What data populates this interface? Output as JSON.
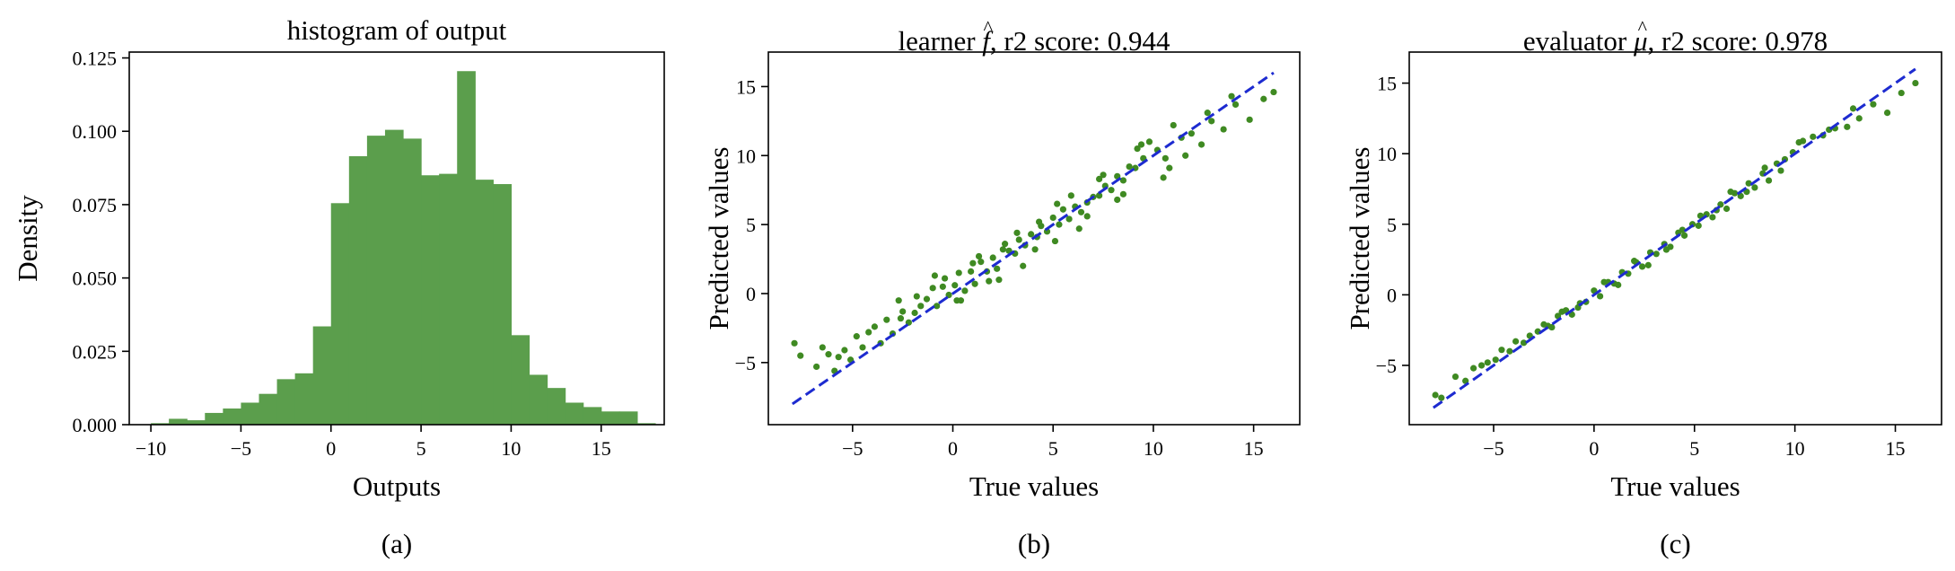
{
  "colors": {
    "bar": "#5b9e4c",
    "point": "#3f8a22",
    "diagonal": "#1d2bd0",
    "axis": "#000000"
  },
  "chart_data": [
    {
      "type": "bar",
      "panel_label": "(a)",
      "title": "histogram of output",
      "xlabel": "Outputs",
      "ylabel": "Density",
      "xlim": [
        -11.2,
        18.5
      ],
      "ylim": [
        0,
        0.127
      ],
      "xticks": [
        -10,
        -5,
        0,
        5,
        10,
        15
      ],
      "xtick_labels": [
        "−10",
        "−5",
        "0",
        "5",
        "10",
        "15"
      ],
      "yticks": [
        0,
        0.025,
        0.05,
        0.075,
        0.1,
        0.125
      ],
      "ytick_labels": [
        "0.000",
        "0.025",
        "0.050",
        "0.075",
        "0.100",
        "0.125"
      ],
      "bin_edges": [
        -10.0,
        -9.0,
        -8.0,
        -7.0,
        -6.0,
        -5.0,
        -4.0,
        -3.0,
        -2.0,
        -1.0,
        0.0,
        1.0,
        2.0,
        3.0,
        4.0,
        5.0,
        6.0,
        7.0,
        8.0,
        9.0,
        10.0,
        11.0,
        12.0,
        13.0,
        14.0,
        15.0,
        16.0,
        17.0
      ],
      "values": [
        0.0005,
        0.002,
        0.0015,
        0.004,
        0.0055,
        0.0075,
        0.0105,
        0.0155,
        0.0175,
        0.0335,
        0.0755,
        0.0915,
        0.0985,
        0.1005,
        0.0975,
        0.085,
        0.0855,
        0.1205,
        0.0835,
        0.082,
        0.0305,
        0.017,
        0.0125,
        0.0075,
        0.006,
        0.0045,
        0.0045,
        0.0005
      ],
      "grid": false,
      "legend": "none"
    },
    {
      "type": "scatter",
      "panel_label": "(b)",
      "title_prefix": "learner ",
      "title_symbol": "f",
      "title_accent": "^",
      "title_suffix": ", r2 score: 0.944",
      "xlabel": "True values",
      "ylabel": "Predicted values",
      "xlim": [
        -9.2,
        17.3
      ],
      "ylim": [
        -9.5,
        17.5
      ],
      "xticks": [
        -5,
        0,
        5,
        10,
        15
      ],
      "xtick_labels": [
        "−5",
        "0",
        "5",
        "10",
        "15"
      ],
      "yticks": [
        -5,
        0,
        5,
        10,
        15
      ],
      "ytick_labels": [
        "−5",
        "0",
        "5",
        "10",
        "15"
      ],
      "diagonal": [
        -8,
        16
      ],
      "x": [
        -7.9,
        -7.6,
        -6.8,
        -6.5,
        -6.2,
        -5.9,
        -5.7,
        -5.4,
        -5.1,
        -4.8,
        -4.5,
        -4.2,
        -3.9,
        -3.6,
        -3.3,
        -3.0,
        -2.7,
        -2.5,
        -2.2,
        -1.9,
        -1.6,
        -1.3,
        -1.0,
        -0.8,
        -0.5,
        -0.2,
        0.1,
        0.3,
        0.6,
        0.9,
        1.1,
        1.4,
        1.7,
        2.0,
        2.2,
        2.5,
        2.8,
        3.1,
        3.3,
        3.6,
        3.9,
        4.2,
        4.4,
        4.7,
        5.0,
        5.3,
        5.5,
        5.8,
        6.1,
        6.4,
        6.7,
        7.0,
        7.3,
        7.6,
        7.9,
        8.2,
        8.5,
        8.8,
        9.1,
        9.5,
        9.8,
        10.2,
        10.6,
        11.0,
        11.4,
        11.9,
        12.4,
        12.9,
        13.5,
        14.1,
        14.8,
        15.5,
        16.0,
        -2.6,
        -1.8,
        -0.9,
        0.2,
        1.0,
        1.8,
        2.6,
        3.5,
        4.3,
        5.1,
        5.9,
        6.7,
        7.5,
        8.5,
        9.4,
        10.5,
        11.6,
        12.7,
        13.9,
        -0.4,
        0.4,
        1.3,
        2.3,
        3.2,
        4.1,
        5.2,
        6.3,
        7.3,
        8.2,
        9.2,
        10.8
      ],
      "y": [
        -3.6,
        -4.5,
        -5.3,
        -3.9,
        -4.4,
        -5.6,
        -4.6,
        -4.1,
        -4.8,
        -3.1,
        -3.9,
        -2.8,
        -2.4,
        -3.6,
        -1.9,
        -2.9,
        -0.5,
        -1.3,
        -2.1,
        -1.4,
        -0.9,
        -0.4,
        0.4,
        -0.9,
        0.5,
        -0.1,
        0.6,
        1.5,
        0.2,
        1.6,
        0.7,
        2.3,
        1.6,
        2.6,
        1.8,
        3.2,
        3.1,
        2.9,
        3.9,
        3.5,
        4.3,
        4.1,
        4.9,
        4.5,
        5.5,
        5.0,
        6.1,
        5.4,
        6.3,
        5.9,
        6.6,
        7.0,
        7.1,
        7.8,
        7.5,
        8.5,
        8.2,
        9.2,
        9.1,
        9.8,
        11.0,
        10.4,
        9.8,
        12.2,
        11.3,
        11.6,
        10.8,
        12.5,
        11.9,
        13.7,
        12.6,
        14.1,
        14.6,
        -1.8,
        -0.2,
        1.3,
        -0.5,
        2.2,
        0.9,
        3.6,
        2.0,
        5.2,
        3.8,
        7.1,
        5.6,
        8.6,
        7.2,
        10.8,
        8.4,
        10.0,
        13.1,
        14.3,
        1.1,
        -0.5,
        2.7,
        1.0,
        4.4,
        3.2,
        6.5,
        4.7,
        8.3,
        6.8,
        10.5,
        9.1
      ],
      "grid": false,
      "legend": "none"
    },
    {
      "type": "scatter",
      "panel_label": "(c)",
      "title_prefix": "evaluator ",
      "title_symbol": "μ",
      "title_accent": "^",
      "title_suffix": ", r2 score: 0.978",
      "xlabel": "True values",
      "ylabel": "Predicted values",
      "xlim": [
        -9.2,
        17.3
      ],
      "ylim": [
        -9.2,
        17.2
      ],
      "xticks": [
        -5,
        0,
        5,
        10,
        15
      ],
      "xtick_labels": [
        "−5",
        "0",
        "5",
        "10",
        "15"
      ],
      "yticks": [
        -5,
        0,
        5,
        10,
        15
      ],
      "ytick_labels": [
        "−5",
        "0",
        "5",
        "10",
        "15"
      ],
      "diagonal": [
        -8,
        16
      ],
      "x": [
        -7.9,
        -7.6,
        -6.9,
        -6.4,
        -6.0,
        -5.6,
        -5.3,
        -4.9,
        -4.6,
        -4.2,
        -3.9,
        -3.5,
        -3.2,
        -2.8,
        -2.5,
        -2.1,
        -1.8,
        -1.4,
        -1.1,
        -0.7,
        -0.4,
        0.0,
        0.3,
        0.7,
        1.0,
        1.4,
        1.7,
        2.1,
        2.4,
        2.8,
        3.1,
        3.5,
        3.8,
        4.2,
        4.5,
        4.9,
        5.2,
        5.6,
        5.9,
        6.3,
        6.6,
        7.0,
        7.3,
        7.7,
        8.0,
        8.4,
        8.7,
        9.1,
        9.5,
        9.9,
        10.4,
        10.9,
        11.4,
        12.0,
        12.6,
        13.2,
        13.9,
        14.6,
        15.3,
        16.0,
        -2.3,
        -1.6,
        -0.8,
        0.5,
        1.2,
        2.0,
        2.7,
        3.6,
        4.4,
        5.3,
        6.1,
        6.8,
        7.6,
        8.5,
        9.3,
        10.2,
        11.7,
        12.9
      ],
      "y": [
        -7.1,
        -7.3,
        -5.8,
        -6.1,
        -5.2,
        -5.0,
        -4.8,
        -4.6,
        -3.9,
        -4.0,
        -3.3,
        -3.4,
        -2.9,
        -2.6,
        -2.1,
        -2.3,
        -1.5,
        -1.1,
        -1.4,
        -0.6,
        -0.5,
        0.3,
        -0.1,
        0.9,
        0.8,
        1.6,
        1.5,
        2.3,
        2.0,
        3.0,
        2.9,
        3.6,
        3.4,
        4.4,
        4.2,
        5.0,
        4.9,
        5.7,
        5.5,
        6.4,
        6.1,
        7.2,
        7.0,
        7.9,
        7.6,
        8.6,
        8.1,
        9.3,
        9.6,
        10.1,
        10.9,
        11.2,
        11.3,
        11.8,
        11.9,
        12.5,
        13.5,
        12.9,
        14.3,
        15.0,
        -2.2,
        -1.2,
        -0.9,
        0.9,
        0.7,
        2.4,
        2.1,
        3.2,
        4.6,
        5.6,
        6.0,
        7.3,
        7.3,
        9.0,
        8.8,
        10.8,
        11.7,
        13.2
      ],
      "grid": false,
      "legend": "none"
    }
  ]
}
